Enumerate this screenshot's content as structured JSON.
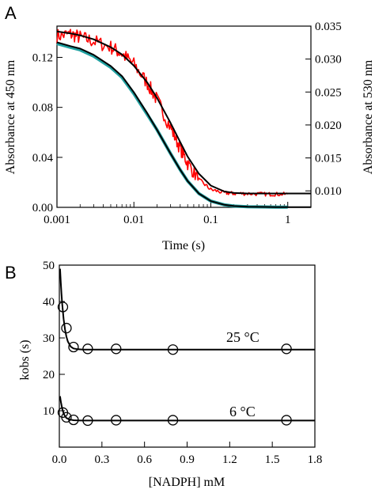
{
  "chart_data": [
    {
      "panel": "A",
      "type": "line",
      "xlabel": "Time (s)",
      "ylabel_left": "Absorbance at 450 nm",
      "ylabel_right": "Absorbance at 530 nm",
      "x_scale": "log",
      "xlim": [
        0.001,
        2
      ],
      "ylim_left": [
        0,
        0.145
      ],
      "ylim_right": [
        0.0075,
        0.035
      ],
      "x_ticks": [
        0.001,
        0.01,
        0.1,
        1
      ],
      "x_tick_labels": [
        "0.001",
        "0.01",
        "0.1",
        "1"
      ],
      "y_ticks_left": [
        0.0,
        0.04,
        0.08,
        0.12
      ],
      "y_tick_labels_left": [
        "0.00",
        "0.04",
        "0.08",
        "0.12"
      ],
      "y_ticks_right": [
        0.01,
        0.015,
        0.02,
        0.025,
        0.03,
        0.035
      ],
      "y_tick_labels_right": [
        "0.010",
        "0.015",
        "0.020",
        "0.025",
        "0.030",
        "0.035"
      ],
      "grid": false,
      "series": [
        {
          "axis": "right",
          "color": "#ff0000",
          "style": "noisy-data",
          "x": [
            0.001,
            0.0015,
            0.002,
            0.003,
            0.005,
            0.007,
            0.01,
            0.015,
            0.02,
            0.03,
            0.04,
            0.05,
            0.07,
            0.1,
            0.15,
            0.2,
            0.3,
            0.5,
            0.7,
            1.0
          ],
          "y": [
            0.0335,
            0.0338,
            0.0333,
            0.0327,
            0.0318,
            0.0308,
            0.0292,
            0.0263,
            0.0238,
            0.0196,
            0.0165,
            0.0142,
            0.0117,
            0.0102,
            0.0097,
            0.0096,
            0.0096,
            0.0095,
            0.0095,
            0.0095
          ]
        },
        {
          "axis": "left",
          "color": "#20a0a0",
          "style": "thick-data",
          "x": [
            0.001,
            0.0015,
            0.002,
            0.003,
            0.005,
            0.007,
            0.01,
            0.015,
            0.02,
            0.03,
            0.04,
            0.05,
            0.07,
            0.1,
            0.15,
            0.2,
            0.3,
            0.5,
            0.7,
            1.0
          ],
          "y": [
            0.131,
            0.128,
            0.126,
            0.121,
            0.112,
            0.104,
            0.091,
            0.074,
            0.062,
            0.043,
            0.03,
            0.021,
            0.011,
            0.005,
            0.002,
            0.001,
            0.0005,
            0.0003,
            0.0002,
            0.0002
          ]
        },
        {
          "axis": "right",
          "color": "#000000",
          "style": "fit",
          "x": [
            0.001,
            0.0015,
            0.002,
            0.003,
            0.005,
            0.007,
            0.01,
            0.015,
            0.02,
            0.03,
            0.04,
            0.05,
            0.07,
            0.1,
            0.15,
            0.2,
            0.3,
            0.5,
            0.7,
            1.0,
            2.0
          ],
          "y": [
            0.0342,
            0.0339,
            0.0336,
            0.033,
            0.0318,
            0.0307,
            0.029,
            0.0264,
            0.0241,
            0.0203,
            0.0174,
            0.0152,
            0.0126,
            0.0108,
            0.0099,
            0.0097,
            0.0096,
            0.0096,
            0.0096,
            0.0096,
            0.0096
          ]
        },
        {
          "axis": "left",
          "color": "#000000",
          "style": "fit",
          "x": [
            0.001,
            0.0015,
            0.002,
            0.003,
            0.005,
            0.007,
            0.01,
            0.015,
            0.02,
            0.03,
            0.04,
            0.05,
            0.07,
            0.1,
            0.15,
            0.2,
            0.3,
            0.5,
            0.7,
            1.0,
            2.0
          ],
          "y": [
            0.132,
            0.129,
            0.127,
            0.122,
            0.113,
            0.105,
            0.092,
            0.075,
            0.062,
            0.043,
            0.03,
            0.021,
            0.011,
            0.005,
            0.002,
            0.001,
            0.0005,
            0.0003,
            0.0002,
            0.0002,
            0.0002
          ]
        }
      ]
    },
    {
      "panel": "B",
      "type": "scatter",
      "xlabel": "[NADPH] mM",
      "ylabel": "kobs (s)",
      "xlim": [
        0,
        1.8
      ],
      "ylim": [
        0,
        50
      ],
      "x_ticks": [
        0,
        0.3,
        0.6,
        0.9,
        1.2,
        1.5,
        1.8
      ],
      "x_tick_labels": [
        "0.0",
        "0.3",
        "0.6",
        "0.9",
        "1.2",
        "1.5",
        "1.8"
      ],
      "y_ticks": [
        10,
        20,
        30,
        40,
        50
      ],
      "y_tick_labels": [
        "10",
        "20",
        "30",
        "40",
        "50"
      ],
      "grid": false,
      "series": [
        {
          "label": "25 °C",
          "points_x": [
            0.025,
            0.05,
            0.1,
            0.2,
            0.4,
            0.8,
            1.6
          ],
          "points_y": [
            38.5,
            32.7,
            27.5,
            27.0,
            27.0,
            26.8,
            27.0
          ],
          "fit_x": [
            0.005,
            0.01,
            0.015,
            0.02,
            0.03,
            0.04,
            0.05,
            0.06,
            0.08,
            0.1,
            0.13,
            0.17,
            0.2,
            0.3,
            0.5,
            1.0,
            1.8
          ],
          "fit_y": [
            49.0,
            45.3,
            42.1,
            39.4,
            35.2,
            32.3,
            30.3,
            29.0,
            27.6,
            27.1,
            26.9,
            26.8,
            26.8,
            26.8,
            26.8,
            26.8,
            26.8
          ]
        },
        {
          "label": "6 °C",
          "points_x": [
            0.025,
            0.05,
            0.1,
            0.2,
            0.4,
            0.8,
            1.6
          ],
          "points_y": [
            9.5,
            8.2,
            7.5,
            7.3,
            7.4,
            7.4,
            7.4
          ],
          "fit_x": [
            0.005,
            0.01,
            0.02,
            0.03,
            0.04,
            0.05,
            0.07,
            0.1,
            0.15,
            0.2,
            0.5,
            1.0,
            1.8
          ],
          "fit_y": [
            14.0,
            12.6,
            10.6,
            9.3,
            8.5,
            8.0,
            7.6,
            7.4,
            7.3,
            7.3,
            7.3,
            7.3,
            7.3
          ]
        }
      ]
    }
  ]
}
